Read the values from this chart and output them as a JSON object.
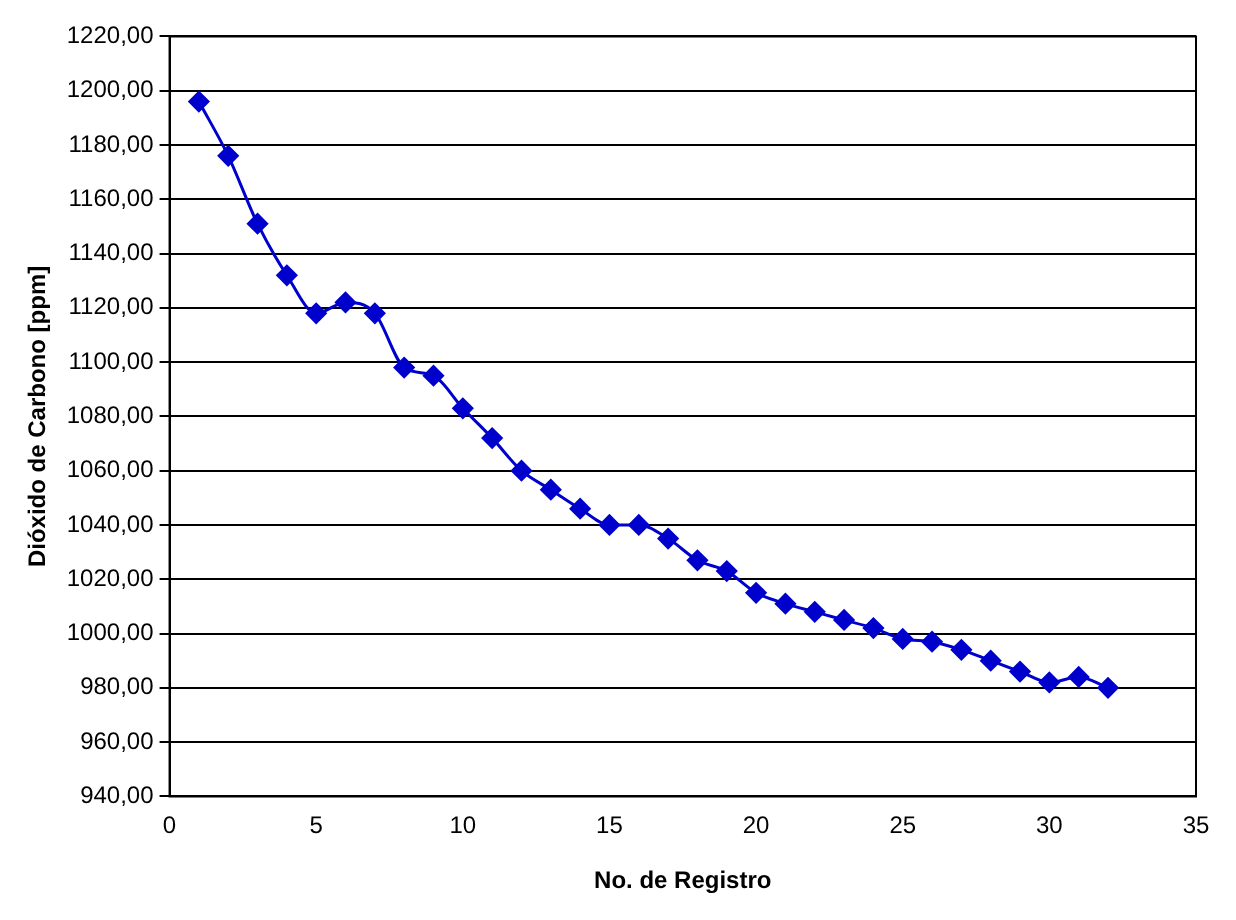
{
  "chart_data": {
    "type": "line",
    "xlabel": "No. de Registro",
    "ylabel": "Dióxido de Carbono [ppm]",
    "x": [
      1,
      2,
      3,
      4,
      5,
      6,
      7,
      8,
      9,
      10,
      11,
      12,
      13,
      14,
      15,
      16,
      17,
      18,
      19,
      20,
      21,
      22,
      23,
      24,
      25,
      26,
      27,
      28,
      29,
      30,
      31,
      32
    ],
    "series": [
      {
        "color": "#0000cc",
        "values": [
          1196,
          1176,
          1151,
          1132,
          1118,
          1122,
          1118,
          1098,
          1095,
          1083,
          1072,
          1060,
          1053,
          1046,
          1040,
          1040,
          1035,
          1027,
          1023,
          1015,
          1011,
          1008,
          1005,
          1002,
          998,
          997,
          994,
          990,
          986,
          982,
          984,
          980
        ]
      }
    ],
    "xlim": [
      0,
      35
    ],
    "xticks": [
      0,
      5,
      10,
      15,
      20,
      25,
      30,
      35
    ],
    "ylim": [
      940,
      1220
    ],
    "yticks": [
      {
        "value": 940,
        "label": "940,00"
      },
      {
        "value": 960,
        "label": "960,00"
      },
      {
        "value": 980,
        "label": "980,00"
      },
      {
        "value": 1000,
        "label": "1000,00"
      },
      {
        "value": 1020,
        "label": "1020,00"
      },
      {
        "value": 1040,
        "label": "1040,00"
      },
      {
        "value": 1060,
        "label": "1060,00"
      },
      {
        "value": 1080,
        "label": "1080,00"
      },
      {
        "value": 1100,
        "label": "1100,00"
      },
      {
        "value": 1120,
        "label": "1120,00"
      },
      {
        "value": 1140,
        "label": "1140,00"
      },
      {
        "value": 1160,
        "label": "1160,00"
      },
      {
        "value": 1180,
        "label": "1180,00"
      },
      {
        "value": 1200,
        "label": "1200,00"
      },
      {
        "value": 1220,
        "label": "1220,00"
      }
    ],
    "grid": "y",
    "legend": false,
    "marker": "diamond",
    "line_style": "solid"
  }
}
